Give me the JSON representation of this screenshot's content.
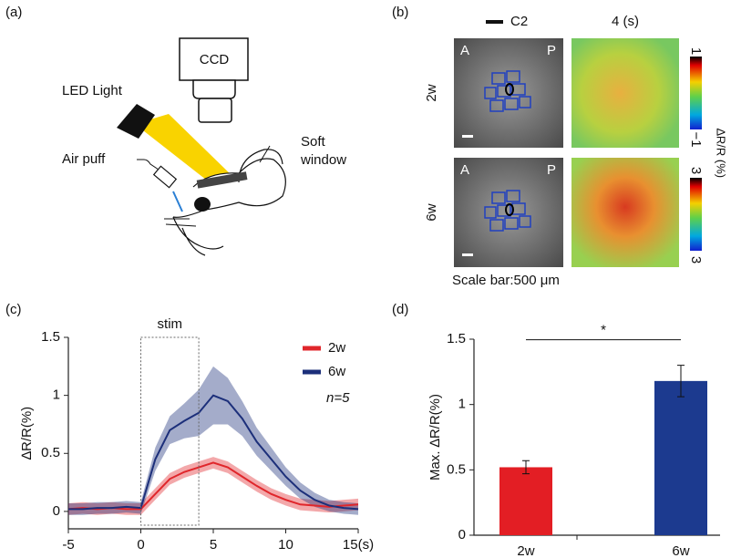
{
  "panel_labels": [
    "(a)",
    "(b)",
    "(c)",
    "(d)"
  ],
  "setup": {
    "camera": "CCD",
    "light": "LED Light",
    "stimulus": "Air puff",
    "window": [
      "Soft",
      "window"
    ]
  },
  "imaging": {
    "marker": "C2",
    "time": "4 (s)",
    "rows": [
      "2w",
      "6w"
    ],
    "anterior": "A",
    "posterior": "P",
    "colorbar_ticks": [
      [
        "1",
        "−1"
      ],
      [
        "3",
        "3"
      ]
    ],
    "colorbar_label": "∆R/R (%)",
    "scale": "Scale bar:500 μm"
  },
  "chart_data": [
    {
      "type": "line",
      "y_label": "∆R/R(%)",
      "x": [
        -5,
        -4,
        -3,
        -2,
        -1,
        0,
        1,
        2,
        3,
        4,
        5,
        6,
        7,
        8,
        9,
        10,
        11,
        12,
        13,
        14,
        15
      ],
      "xlim": [
        -5,
        15
      ],
      "xticks": [
        -5,
        0,
        5,
        10,
        {
          "value": 15,
          "label": "15(s)"
        }
      ],
      "ylim": [
        -0.15,
        1.5
      ],
      "yticks": [
        0,
        0.5,
        1,
        1.5
      ],
      "series": [
        {
          "name": "2w",
          "color": "#e0262b",
          "values": [
            0.02,
            0.03,
            0.02,
            0.03,
            0.02,
            0.02,
            0.15,
            0.28,
            0.34,
            0.38,
            0.42,
            0.38,
            0.3,
            0.22,
            0.15,
            0.1,
            0.06,
            0.05,
            0.04,
            0.05,
            0.06
          ],
          "errors": [
            0.05,
            0.05,
            0.05,
            0.05,
            0.05,
            0.05,
            0.05,
            0.05,
            0.05,
            0.05,
            0.05,
            0.05,
            0.05,
            0.05,
            0.05,
            0.05,
            0.05,
            0.05,
            0.05,
            0.05,
            0.05
          ]
        },
        {
          "name": "6w",
          "color": "#1c2f7a",
          "values": [
            0.02,
            0.02,
            0.03,
            0.03,
            0.04,
            0.03,
            0.45,
            0.7,
            0.78,
            0.85,
            1.0,
            0.95,
            0.8,
            0.6,
            0.45,
            0.3,
            0.18,
            0.1,
            0.05,
            0.03,
            0.02
          ],
          "errors": [
            0.05,
            0.05,
            0.05,
            0.05,
            0.05,
            0.05,
            0.1,
            0.12,
            0.15,
            0.2,
            0.25,
            0.2,
            0.15,
            0.12,
            0.1,
            0.08,
            0.07,
            0.06,
            0.05,
            0.05,
            0.05
          ]
        }
      ],
      "annotations": [
        {
          "text": "stim",
          "x": [
            0,
            4
          ]
        },
        {
          "text": "n=5"
        }
      ],
      "legend": "upper right"
    },
    {
      "type": "bar",
      "y_label": "Max. ∆R/R(%)",
      "categories": [
        "2w",
        "6w"
      ],
      "values": [
        0.52,
        1.18
      ],
      "errors": [
        0.05,
        0.12
      ],
      "colors": [
        "#e31e24",
        "#1c3a8f"
      ],
      "ylim": [
        0,
        1.5
      ],
      "yticks": [
        0,
        0.5,
        1,
        1.5
      ],
      "significance": {
        "label": "*"
      }
    }
  ]
}
